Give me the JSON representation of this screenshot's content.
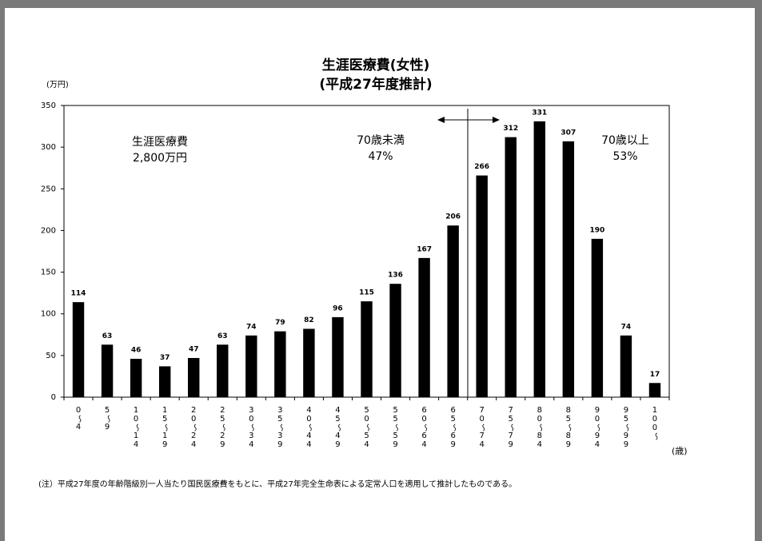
{
  "chart_data": {
    "type": "bar",
    "title": [
      "生涯医療費(女性)",
      "(平成27年度推計)"
    ],
    "y_label": "(万円)",
    "x_label": "(歳)",
    "categories": [
      "0～4",
      "5～9",
      "10～14",
      "15～19",
      "20～24",
      "25～29",
      "30～34",
      "35～39",
      "40～44",
      "45～49",
      "50～54",
      "55～59",
      "60～64",
      "65～69",
      "70～74",
      "75～79",
      "80～84",
      "85～89",
      "90～94",
      "95～99",
      "100～"
    ],
    "values": [
      114,
      63,
      46,
      37,
      47,
      63,
      74,
      79,
      82,
      96,
      115,
      136,
      167,
      206,
      266,
      312,
      331,
      307,
      190,
      74,
      17
    ],
    "color": "#000000",
    "ylim": [
      0,
      350
    ],
    "yticks": [
      0,
      50,
      100,
      150,
      200,
      250,
      300,
      350
    ],
    "annotations": [
      {
        "lines": [
          "生涯医療費",
          "2,800万円"
        ]
      },
      {
        "lines": [
          "70歳未満",
          "47%"
        ]
      },
      {
        "lines": [
          "70歳以上",
          "53%"
        ]
      }
    ],
    "note": "(注）平成27年度の年齢階級別一人当たり国民医療費をもとに、平成27年完全生命表による定常人口を適用して推計したものである。"
  }
}
